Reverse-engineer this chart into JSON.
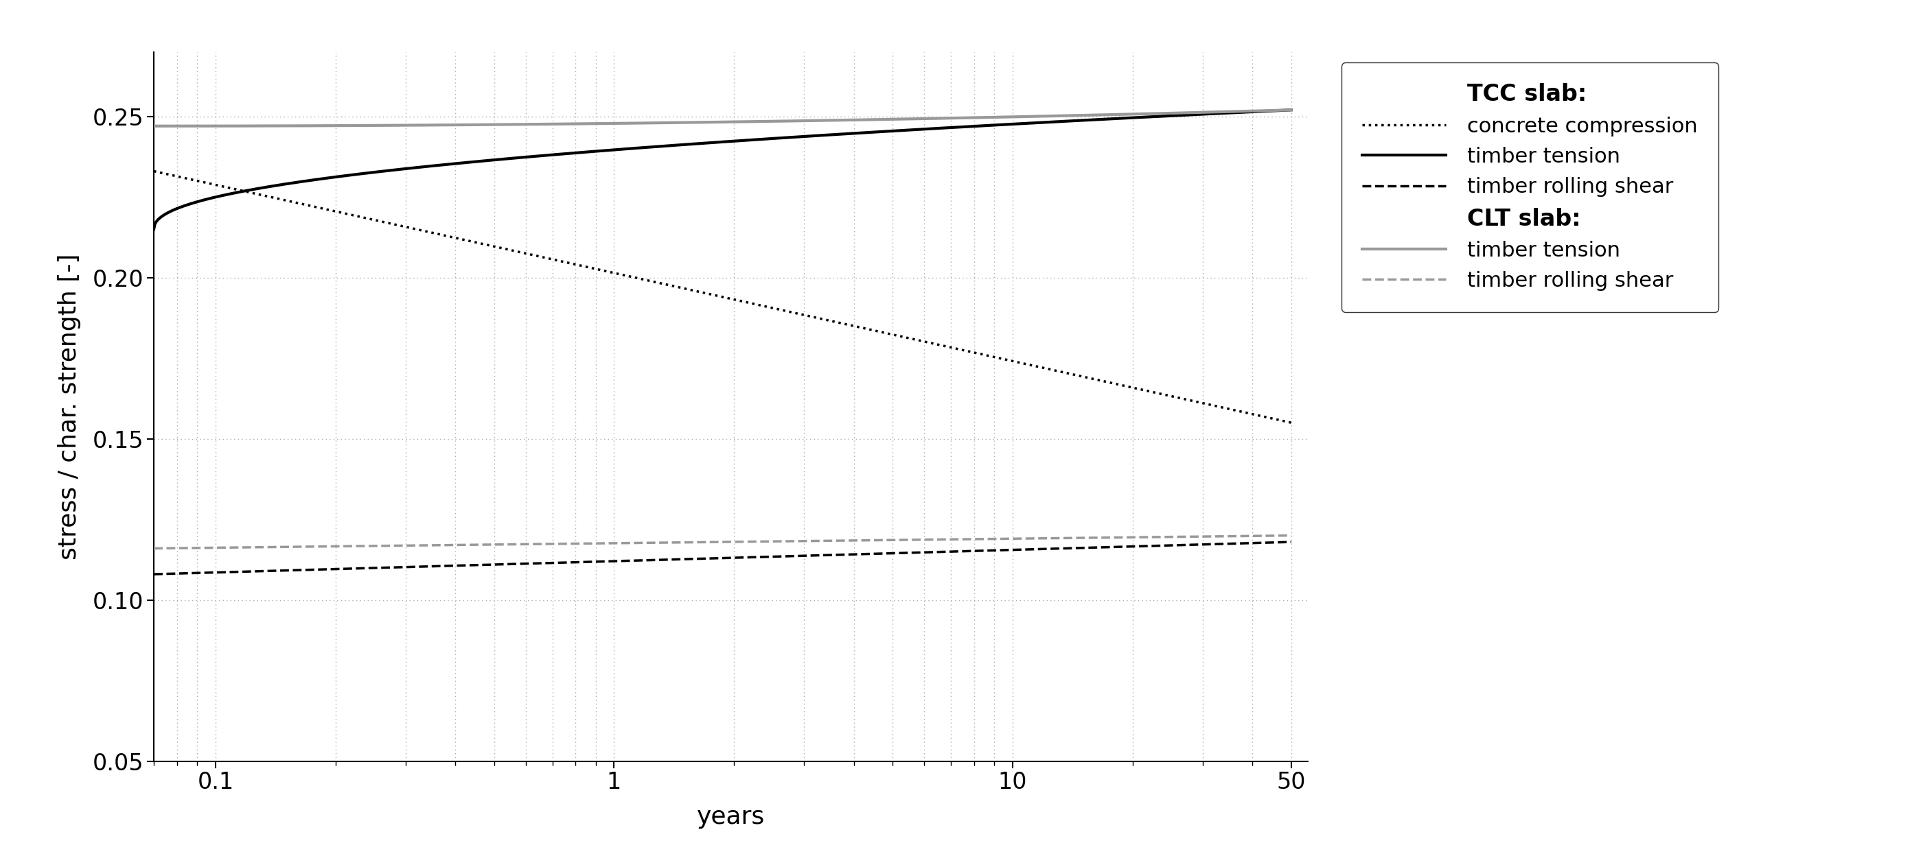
{
  "xlabel": "years",
  "ylabel": "stress / char. strength [-]",
  "ylim": [
    0.05,
    0.27
  ],
  "xlim": [
    0.07,
    55
  ],
  "yticks": [
    0.05,
    0.1,
    0.15,
    0.2,
    0.25
  ],
  "xticks_major": [
    0.1,
    1,
    10,
    50
  ],
  "xtick_labels": [
    "0.1",
    "1",
    "10",
    "50"
  ],
  "background_color": "#ffffff",
  "grid_color": "#aaaaaa",
  "tcc_concrete_color": "#000000",
  "tcc_tension_color": "#000000",
  "tcc_rolling_color": "#000000",
  "clt_tension_color": "#999999",
  "clt_rolling_color": "#999999",
  "legend_title_tcc": "TCC slab:",
  "legend_title_clt": "CLT slab:",
  "legend_entry1": "concrete compression",
  "legend_entry2": "timber tension",
  "legend_entry3": "timber rolling shear",
  "legend_entry4": "timber tension",
  "legend_entry5": "timber rolling shear",
  "lw_black_solid": 3.0,
  "lw_black_dotted": 2.5,
  "lw_black_dashed": 2.5,
  "lw_gray_solid": 3.0,
  "lw_gray_dashed": 2.5
}
